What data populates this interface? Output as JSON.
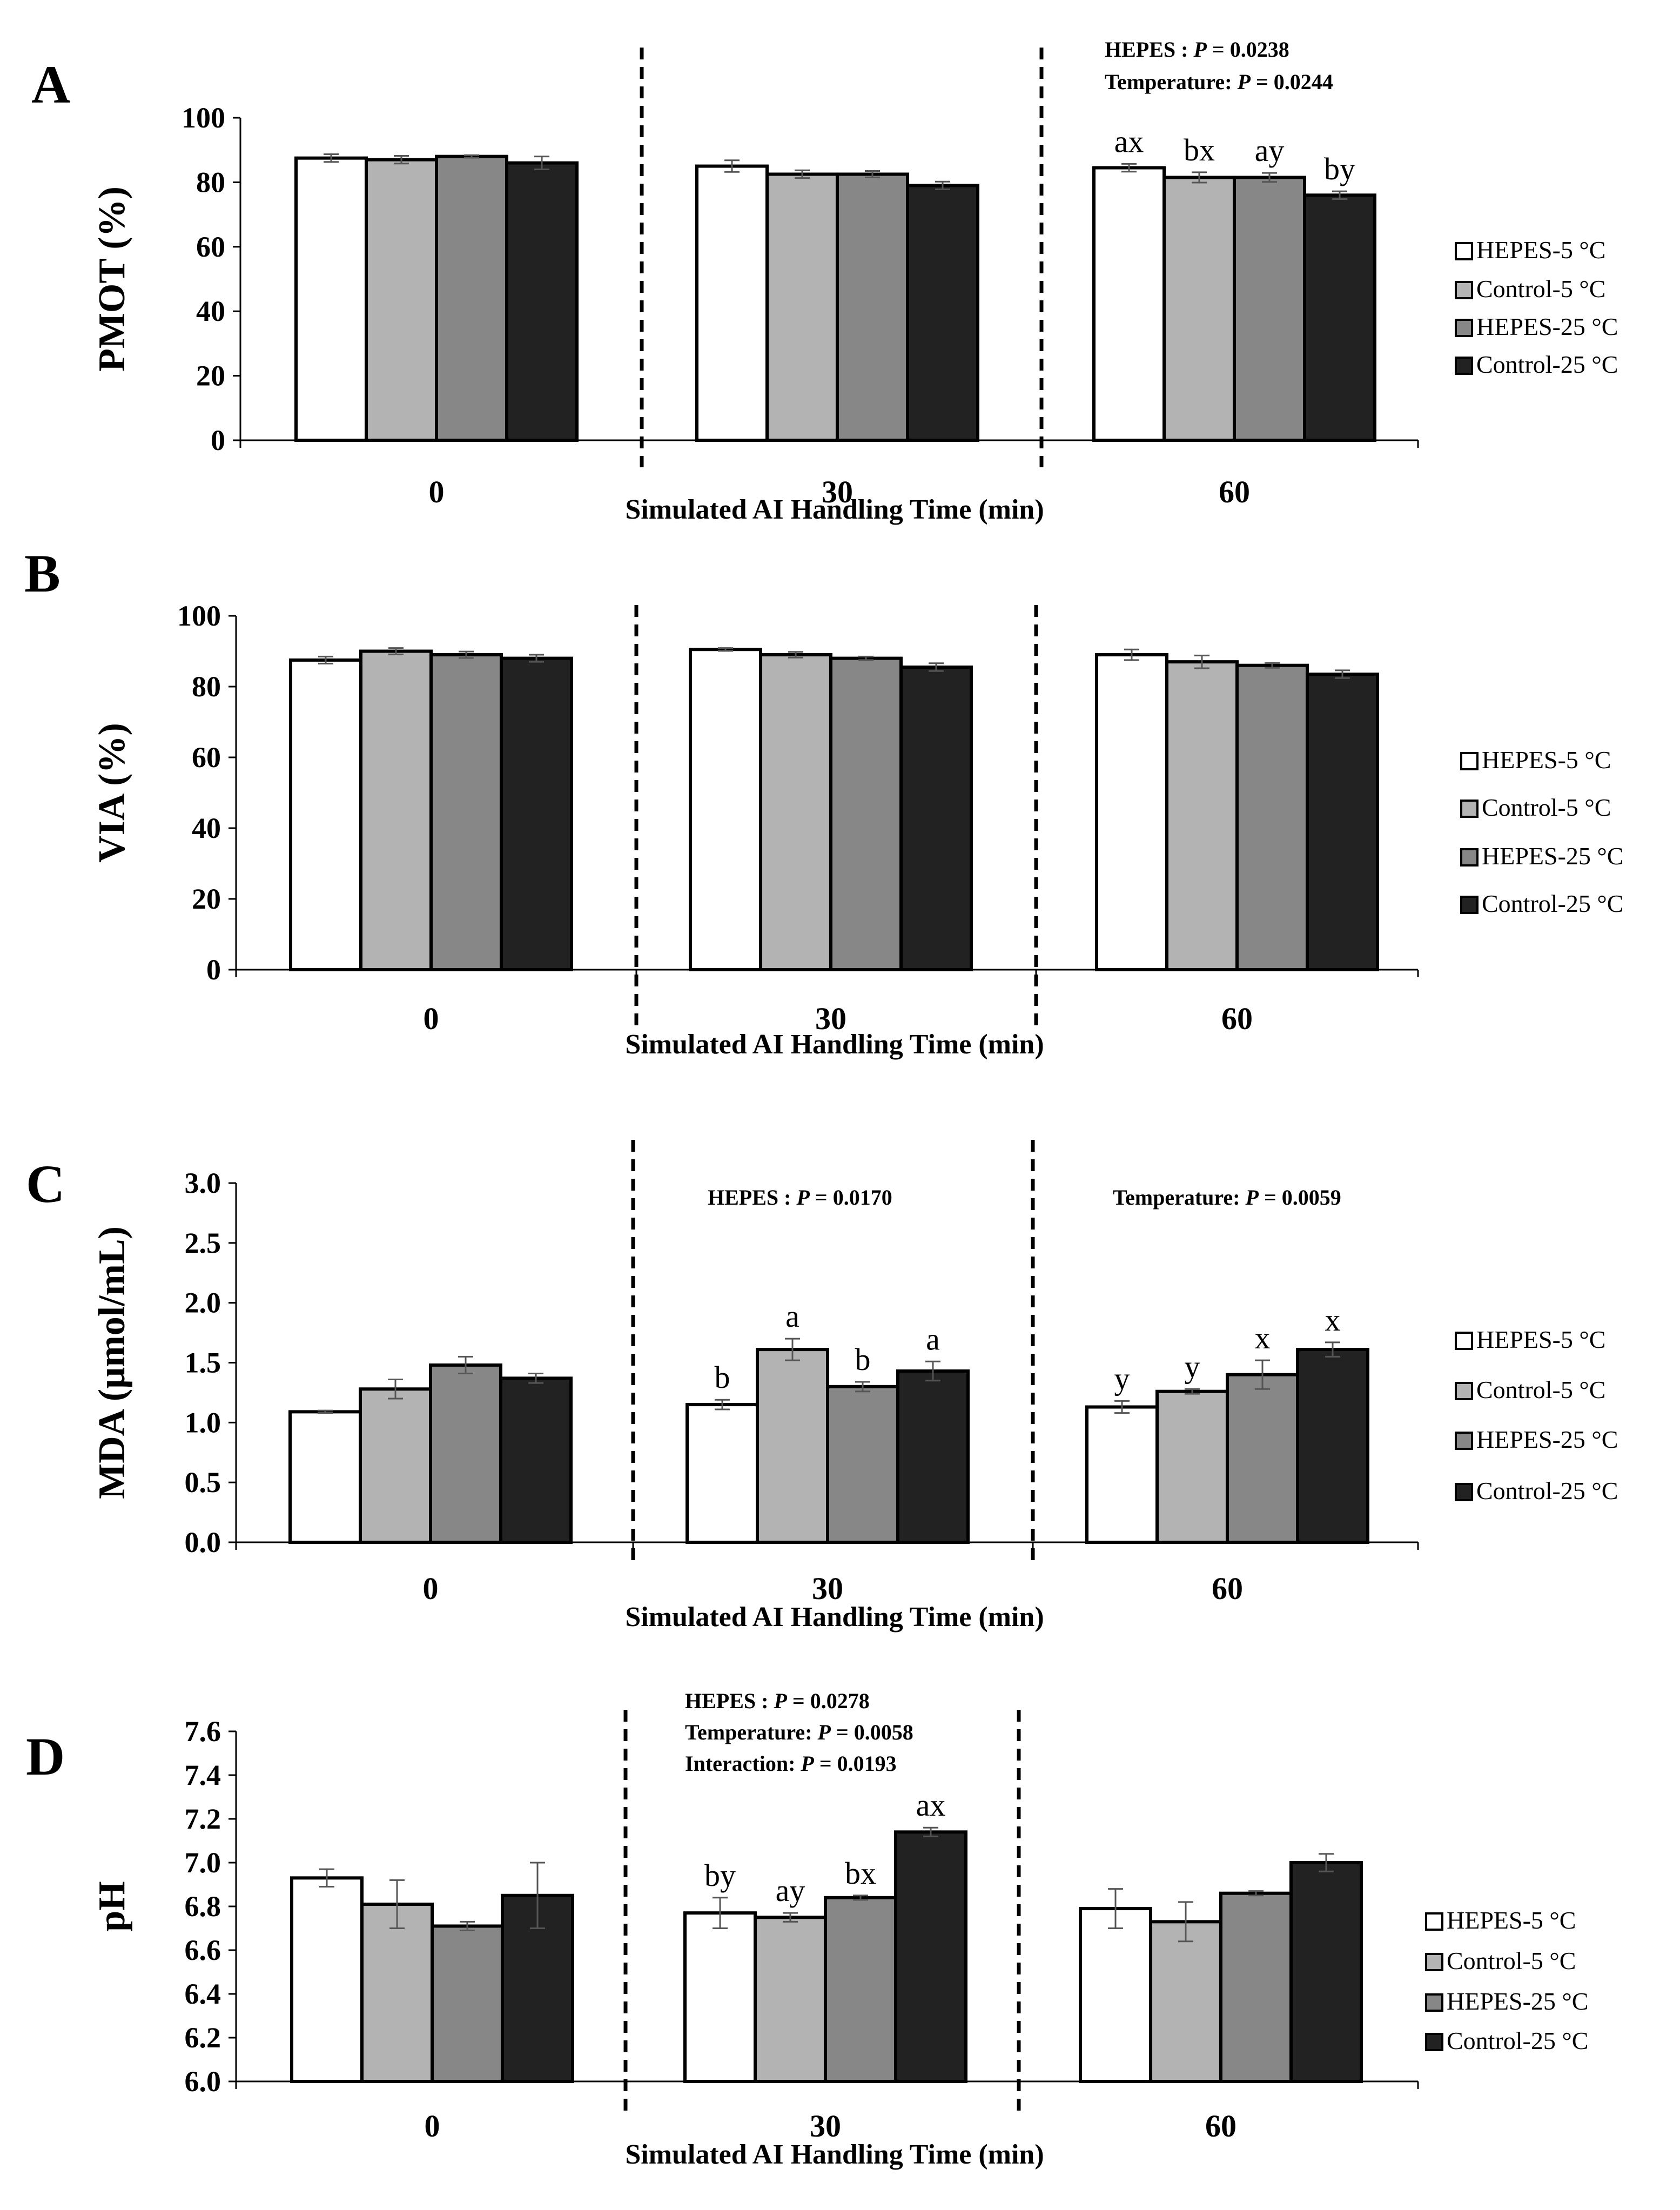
{
  "figure": {
    "xlabel": "Simulated AI Handling Time (min)",
    "colors": {
      "HEPES-5 °C": "#ffffff",
      "Control-5 °C": "#b3b3b3",
      "HEPES-25 °C": "#878787",
      "Control-25 °C": "#222222"
    }
  },
  "chart_data": [
    {
      "type": "bar",
      "panel": "A",
      "ylabel": "PMOT (%)",
      "xlabel": "Simulated AI Handling Time (min)",
      "ylim": [
        0,
        100
      ],
      "yticks": [
        "0",
        "20",
        "40",
        "60",
        "80",
        "100"
      ],
      "categories": [
        "0",
        "30",
        "60"
      ],
      "series": [
        {
          "name": "HEPES-5 °C",
          "values": [
            87.5,
            85,
            84.5
          ],
          "errors": [
            1.2,
            1.8,
            1.2
          ],
          "letters": [
            "",
            "",
            "ax"
          ]
        },
        {
          "name": "Control-5 °C",
          "values": [
            87,
            82.5,
            81.5
          ],
          "errors": [
            1.2,
            1.2,
            1.6
          ],
          "letters": [
            "",
            "",
            "bx"
          ]
        },
        {
          "name": "HEPES-25 °C",
          "values": [
            88,
            82.5,
            81.5
          ],
          "errors": [
            0.4,
            1,
            1.4
          ],
          "letters": [
            "",
            "",
            "ay"
          ]
        },
        {
          "name": "Control-25 °C",
          "values": [
            86,
            79,
            76
          ],
          "errors": [
            2,
            1.2,
            1.2
          ],
          "letters": [
            "",
            "",
            "by"
          ]
        }
      ],
      "annotations": [
        {
          "group": 2,
          "lines": [
            [
              "HEPES : ",
              "P",
              " = 0.0238"
            ],
            [
              "Temperature: ",
              "P",
              " = 0.0244"
            ]
          ]
        }
      ]
    },
    {
      "type": "bar",
      "panel": "B",
      "ylabel": "VIA (%)",
      "xlabel": "Simulated AI Handling Time (min)",
      "ylim": [
        0,
        100
      ],
      "yticks": [
        "0",
        "20",
        "40",
        "60",
        "80",
        "100"
      ],
      "categories": [
        "0",
        "30",
        "60"
      ],
      "series": [
        {
          "name": "HEPES-5 °C",
          "values": [
            87.5,
            90.5,
            89
          ],
          "errors": [
            1,
            0.4,
            1.5
          ],
          "letters": [
            "",
            "",
            ""
          ]
        },
        {
          "name": "Control-5 °C",
          "values": [
            90,
            89,
            87
          ],
          "errors": [
            0.9,
            0.8,
            1.8
          ],
          "letters": [
            "",
            "",
            ""
          ]
        },
        {
          "name": "HEPES-25 °C",
          "values": [
            89,
            88,
            86
          ],
          "errors": [
            0.9,
            0.5,
            0.7
          ],
          "letters": [
            "",
            "",
            ""
          ]
        },
        {
          "name": "Control-25 °C",
          "values": [
            88,
            85.5,
            83.5
          ],
          "errors": [
            1,
            1.1,
            1.1
          ],
          "letters": [
            "",
            "",
            ""
          ]
        }
      ],
      "annotations": []
    },
    {
      "type": "bar",
      "panel": "C",
      "ylabel": "MDA (µmol/mL)",
      "xlabel": "Simulated AI Handling Time (min)",
      "ylim": [
        0,
        3
      ],
      "yticks": [
        "0.0",
        "0.5",
        "1.0",
        "1.5",
        "2.0",
        "2.5",
        "3.0"
      ],
      "categories": [
        "0",
        "30",
        "60"
      ],
      "series": [
        {
          "name": "HEPES-5 °C",
          "values": [
            1.09,
            1.15,
            1.13
          ],
          "errors": [
            0.01,
            0.04,
            0.05
          ],
          "letters": [
            "",
            "b",
            "y"
          ]
        },
        {
          "name": "Control-5 °C",
          "values": [
            1.28,
            1.61,
            1.26
          ],
          "errors": [
            0.08,
            0.09,
            0.02
          ],
          "letters": [
            "",
            "a",
            "y"
          ]
        },
        {
          "name": "HEPES-25 °C",
          "values": [
            1.48,
            1.3,
            1.4
          ],
          "errors": [
            0.07,
            0.04,
            0.12
          ],
          "letters": [
            "",
            "b",
            "x"
          ]
        },
        {
          "name": "Control-25 °C",
          "values": [
            1.37,
            1.43,
            1.61
          ],
          "errors": [
            0.04,
            0.08,
            0.06
          ],
          "letters": [
            "",
            "a",
            "x"
          ]
        }
      ],
      "annotations": [
        {
          "group": 1,
          "lines": [
            [
              "HEPES : ",
              "P",
              " = 0.0170"
            ]
          ]
        },
        {
          "group": 2,
          "lines": [
            [
              "Temperature: ",
              "P",
              " = 0.0059"
            ]
          ]
        }
      ]
    },
    {
      "type": "bar",
      "panel": "D",
      "ylabel": "pH",
      "xlabel": "Simulated AI Handling Time (min)",
      "ylim": [
        6,
        7.6
      ],
      "yticks": [
        "6.0",
        "6.2",
        "6.4",
        "6.6",
        "6.8",
        "7.0",
        "7.2",
        "7.4",
        "7.6"
      ],
      "categories": [
        "0",
        "30",
        "60"
      ],
      "series": [
        {
          "name": "HEPES-5 °C",
          "values": [
            6.93,
            6.77,
            6.79
          ],
          "errors": [
            0.04,
            0.07,
            0.09
          ],
          "letters": [
            "",
            "by",
            ""
          ]
        },
        {
          "name": "Control-5 °C",
          "values": [
            6.81,
            6.75,
            6.73
          ],
          "errors": [
            0.11,
            0.02,
            0.09
          ],
          "letters": [
            "",
            "ay",
            ""
          ]
        },
        {
          "name": "HEPES-25 °C",
          "values": [
            6.71,
            6.84,
            6.86
          ],
          "errors": [
            0.02,
            0.01,
            0.01
          ],
          "letters": [
            "",
            "bx",
            ""
          ]
        },
        {
          "name": "Control-25 °C",
          "values": [
            6.85,
            7.14,
            7.0
          ],
          "errors": [
            0.15,
            0.02,
            0.04
          ],
          "letters": [
            "",
            "ax",
            ""
          ]
        }
      ],
      "annotations": [
        {
          "group": 1,
          "lines": [
            [
              "HEPES : ",
              "P",
              " = 0.0278"
            ],
            [
              "Temperature: ",
              "P",
              " = 0.0058"
            ],
            [
              "Interaction: ",
              "P",
              " = 0.0193"
            ]
          ]
        }
      ]
    }
  ]
}
